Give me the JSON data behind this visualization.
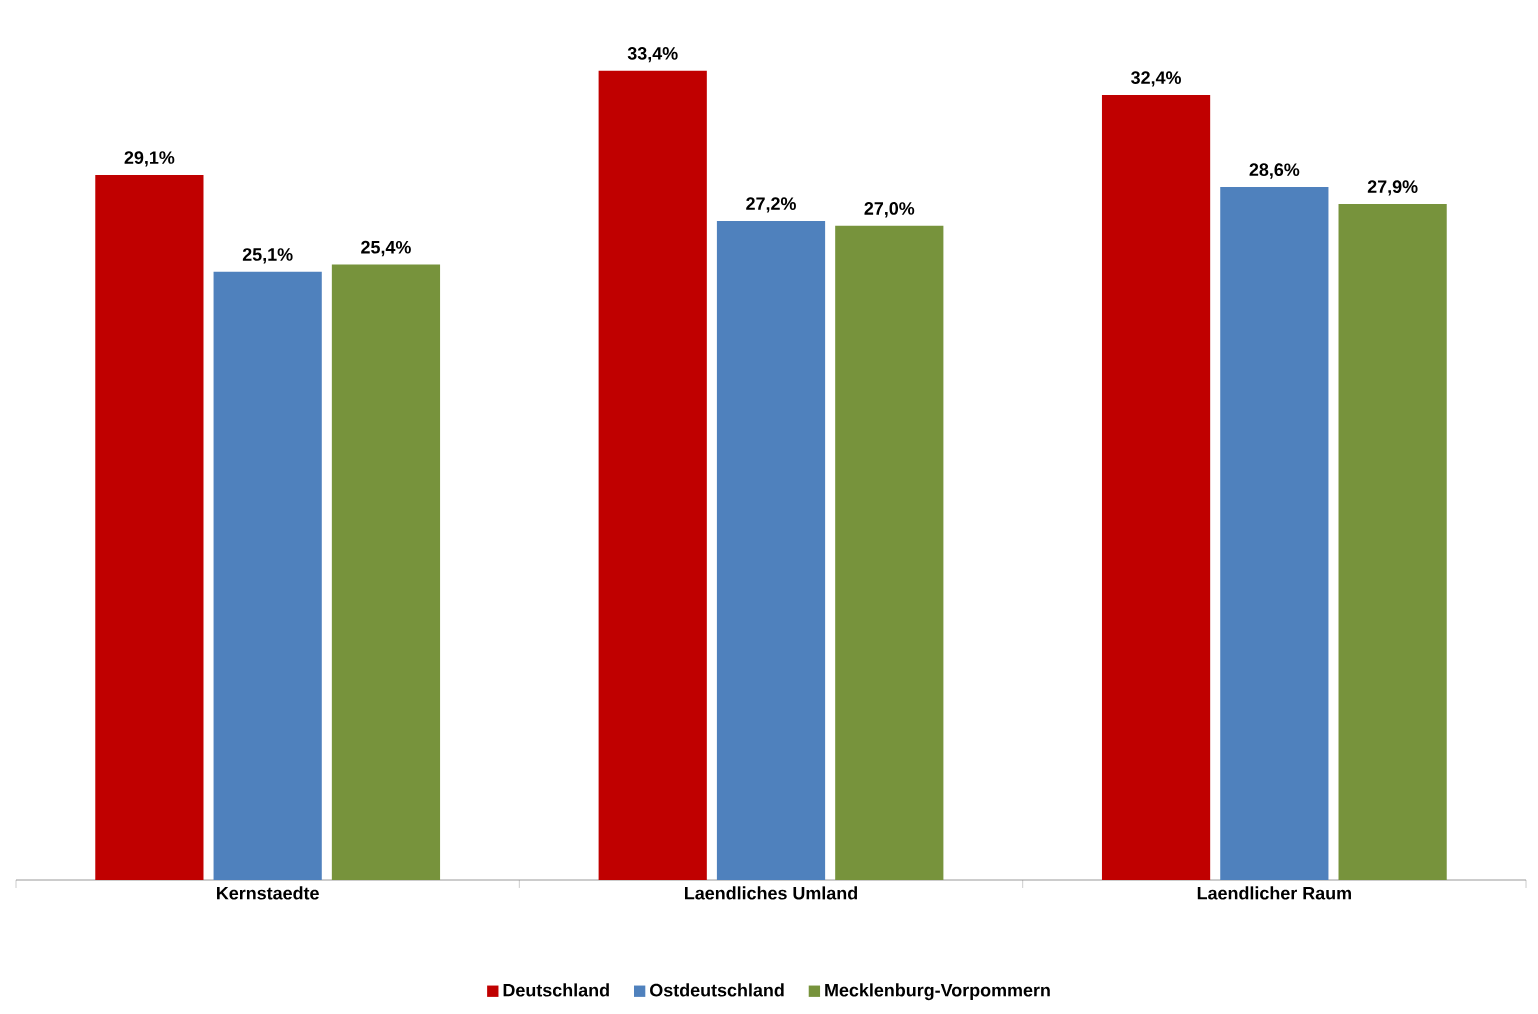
{
  "chart_data": {
    "type": "bar",
    "categories": [
      "Kernstaedte",
      "Laendliches Umland",
      "Laendlicher Raum"
    ],
    "series": [
      {
        "name": "Deutschland",
        "color": "#c00000",
        "values": [
          29.1,
          33.4,
          32.4
        ],
        "value_labels": [
          "29,1%",
          "33,4%",
          "32,4%"
        ]
      },
      {
        "name": "Ostdeutschland",
        "color": "#4f81bd",
        "values": [
          25.1,
          27.2,
          28.6
        ],
        "value_labels": [
          "25,1%",
          "27,2%",
          "28,6%"
        ]
      },
      {
        "name": "Mecklenburg-Vorpommern",
        "color": "#77933c",
        "values": [
          25.4,
          27.0,
          27.9
        ],
        "value_labels": [
          "25,4%",
          "27,0%",
          "27,9%"
        ]
      }
    ],
    "legend": "bottom",
    "grid": false
  }
}
